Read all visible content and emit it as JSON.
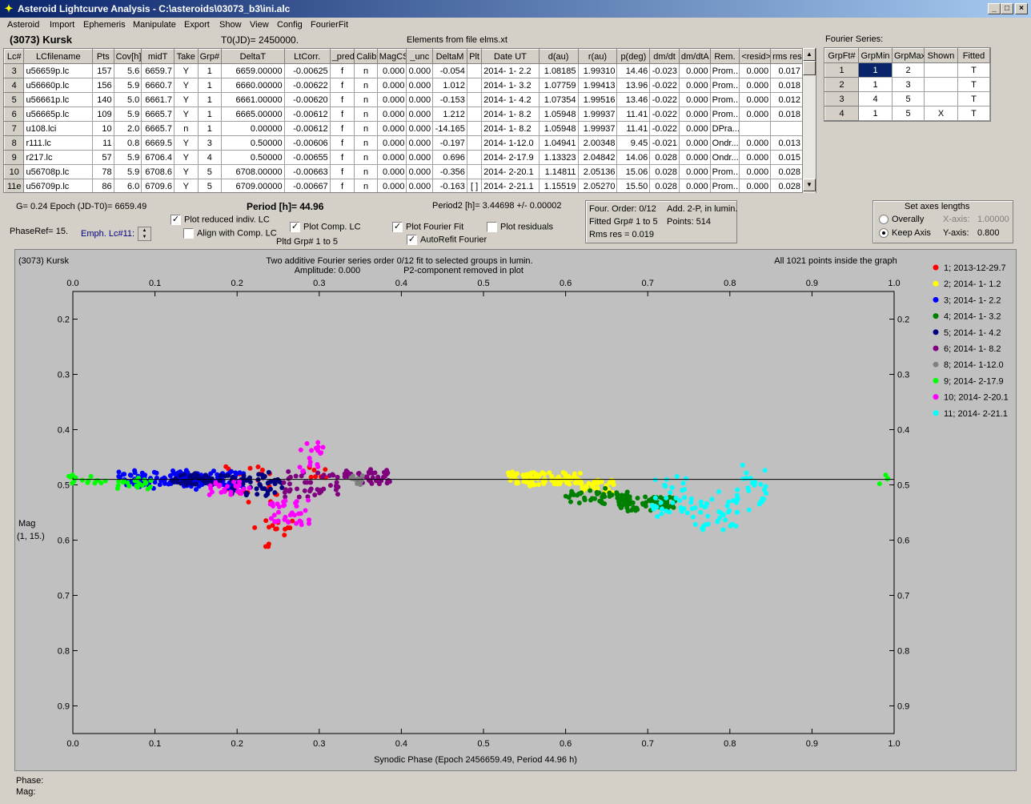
{
  "window": {
    "title": "Asteroid Lightcurve Analysis - C:\\asteroids\\03073_b3\\ini.alc",
    "icon_glyph": "✦",
    "btn_min": "_",
    "btn_max": "□",
    "btn_close": "×"
  },
  "menu": [
    "Asteroid",
    "Import",
    "Ephemeris",
    "Manipulate",
    "Export",
    "Show",
    "View",
    "Config",
    "FourierFit"
  ],
  "header": {
    "asteroid": "(3073) Kursk",
    "t0": "T0(JD)= 2450000.",
    "elements": "Elements from file elms.xt",
    "fourier_label": "Fourier Series:"
  },
  "lc_table": {
    "columns": [
      "Lc#",
      "LCfilename",
      "Pts",
      "Cov[h]",
      "midT",
      "Take",
      "Grp#",
      "DeltaT",
      "LtCorr.",
      "_pred.",
      "Calib.",
      "MagCS",
      "_unc",
      "DeltaM",
      "Plt",
      "Date UT",
      "d(au)",
      "r(au)",
      "p(deg)",
      "dm/dt",
      "dm/dtA",
      "Rem.",
      "<resid>",
      "rms res"
    ],
    "rows": [
      [
        "3",
        "u56659p.lc",
        "157",
        "5.6",
        "6659.7",
        "Y",
        "1",
        "6659.00000",
        "-0.00625",
        "f",
        "n",
        "0.000",
        "0.000",
        "-0.054",
        "",
        "2014- 1- 2.2",
        "1.08185",
        "1.99310",
        "14.46",
        "-0.023",
        "0.000",
        "Prom...",
        "0.000",
        "0.017"
      ],
      [
        "4",
        "u56660p.lc",
        "156",
        "5.9",
        "6660.7",
        "Y",
        "1",
        "6660.00000",
        "-0.00622",
        "f",
        "n",
        "0.000",
        "0.000",
        "1.012",
        "",
        "2014- 1- 3.2",
        "1.07759",
        "1.99413",
        "13.96",
        "-0.022",
        "0.000",
        "Prom...",
        "0.000",
        "0.018"
      ],
      [
        "5",
        "u56661p.lc",
        "140",
        "5.0",
        "6661.7",
        "Y",
        "1",
        "6661.00000",
        "-0.00620",
        "f",
        "n",
        "0.000",
        "0.000",
        "-0.153",
        "",
        "2014- 1- 4.2",
        "1.07354",
        "1.99516",
        "13.46",
        "-0.022",
        "0.000",
        "Prom...",
        "0.000",
        "0.012"
      ],
      [
        "6",
        "u56665p.lc",
        "109",
        "5.9",
        "6665.7",
        "Y",
        "1",
        "6665.00000",
        "-0.00612",
        "f",
        "n",
        "0.000",
        "0.000",
        "1.212",
        "",
        "2014- 1- 8.2",
        "1.05948",
        "1.99937",
        "11.41",
        "-0.022",
        "0.000",
        "Prom...",
        "0.000",
        "0.018"
      ],
      [
        "7",
        "u108.lci",
        "10",
        "2.0",
        "6665.7",
        "n",
        "1",
        "0.00000",
        "-0.00612",
        "f",
        "n",
        "0.000",
        "0.000",
        "-14.165",
        "",
        "2014- 1- 8.2",
        "1.05948",
        "1.99937",
        "11.41",
        "-0.022",
        "0.000",
        "DPra...",
        "",
        ""
      ],
      [
        "8",
        "r111.lc",
        "11",
        "0.8",
        "6669.5",
        "Y",
        "3",
        "0.50000",
        "-0.00606",
        "f",
        "n",
        "0.000",
        "0.000",
        "-0.197",
        "",
        "2014- 1-12.0",
        "1.04941",
        "2.00348",
        "9.45",
        "-0.021",
        "0.000",
        "Ondr...",
        "0.000",
        "0.013"
      ],
      [
        "9",
        "r217.lc",
        "57",
        "5.9",
        "6706.4",
        "Y",
        "4",
        "0.50000",
        "-0.00655",
        "f",
        "n",
        "0.000",
        "0.000",
        "0.696",
        "",
        "2014- 2-17.9",
        "1.13323",
        "2.04842",
        "14.06",
        "0.028",
        "0.000",
        "Ondr...",
        "0.000",
        "0.015"
      ],
      [
        "10",
        "u56708p.lc",
        "78",
        "5.9",
        "6708.6",
        "Y",
        "5",
        "6708.00000",
        "-0.00663",
        "f",
        "n",
        "0.000",
        "0.000",
        "-0.356",
        "",
        "2014- 2-20.1",
        "1.14811",
        "2.05136",
        "15.06",
        "0.028",
        "0.000",
        "Prom...",
        "0.000",
        "0.028"
      ],
      [
        "11e",
        "u56709p.lc",
        "86",
        "6.0",
        "6709.6",
        "Y",
        "5",
        "6709.00000",
        "-0.00667",
        "f",
        "n",
        "0.000",
        "0.000",
        "-0.163",
        "[ ]",
        "2014- 2-21.1",
        "1.15519",
        "2.05270",
        "15.50",
        "0.028",
        "0.000",
        "Prom...",
        "0.000",
        "0.028"
      ]
    ]
  },
  "fourier_table": {
    "columns": [
      "GrpFt#",
      "GrpMin",
      "GrpMax",
      "Shown",
      "Fitted"
    ],
    "rows": [
      [
        "1",
        "1",
        "2",
        "",
        "T"
      ],
      [
        "2",
        "1",
        "3",
        "",
        "T"
      ],
      [
        "3",
        "4",
        "5",
        "",
        "T"
      ],
      [
        "4",
        "1",
        "5",
        "X",
        "T"
      ]
    ]
  },
  "controls": {
    "g_epoch": "G= 0.24   Epoch (JD-T0)= 6659.49",
    "phaseref": "PhaseRef= 15.",
    "emph": "Emph. Lc#11:",
    "plot_reduced": "Plot reduced indiv. LC",
    "align_comp": "Align with Comp. LC",
    "plot_comp": "Plot Comp. LC",
    "plotted_grp": "Pltd Grp#  1   to   5",
    "period": "Period [h]= 44.96",
    "plot_fourier": "Plot Fourier Fit",
    "autorefit": "AutoRefit Fourier",
    "plot_residuals": "Plot residuals",
    "period2": "Period2 [h]= 3.44698 +/- 0.00002",
    "four_order": "Four. Order:  0/12",
    "add2p": "Add. 2-P, in lumin.",
    "fitted_grp": "Fitted Grp# 1 to 5",
    "points": "Points: 514",
    "rms_res": "Rms res    = 0.019",
    "axes_title": "Set axes lengths",
    "overally": "Overally",
    "keep_axis": "Keep Axis",
    "xaxis_lbl": "X-axis:",
    "xaxis_val": "1.00000",
    "yaxis_lbl": "Y-axis:",
    "yaxis_val": "0.800"
  },
  "status": {
    "phase": "Phase:",
    "mag": "Mag:"
  },
  "chart_data": {
    "type": "scatter",
    "corner_label": "(3073) Kursk",
    "title": "Two additive Fourier series order 0/12 fit to selected groups in lumin.",
    "subtitle_left": "Amplitude: 0.000",
    "subtitle_right": "P2-component removed in plot",
    "info_right": "All 1021 points inside the graph",
    "xlabel": "Synodic Phase (Epoch 2456659.49, Period 44.96 h)",
    "ylabel": "Mag",
    "ylabel2": "(1, 15.)",
    "xlim": [
      0.0,
      1.0
    ],
    "ylim": [
      0.15,
      0.95
    ],
    "y_inverted": true,
    "xticks": [
      "0.0",
      "0.1",
      "0.2",
      "0.3",
      "0.4",
      "0.5",
      "0.6",
      "0.7",
      "0.8",
      "0.9",
      "1.0"
    ],
    "yticks": [
      "0.2",
      "0.3",
      "0.4",
      "0.5",
      "0.6",
      "0.7",
      "0.8",
      "0.9"
    ],
    "fit_line_y": 0.49,
    "grid": false,
    "legend_position": "right",
    "series": [
      {
        "name": "1; 2013-12-29.7",
        "color": "#ff0000",
        "clusters": [
          [
            0.205,
            0.475,
            0.035,
            0.015,
            10
          ],
          [
            0.22,
            0.52,
            0.03,
            0.04,
            12
          ],
          [
            0.24,
            0.575,
            0.03,
            0.02,
            12
          ],
          [
            0.3,
            0.475,
            0.012,
            0.02,
            8
          ],
          [
            0.235,
            0.61,
            0.01,
            0.005,
            3
          ]
        ]
      },
      {
        "name": "2; 2014- 1- 1.2",
        "color": "#ffff00",
        "clusters": [
          [
            0.575,
            0.49,
            0.045,
            0.015,
            95
          ],
          [
            0.64,
            0.5,
            0.02,
            0.015,
            25
          ]
        ]
      },
      {
        "name": "3; 2014- 1- 2.2",
        "color": "#0000ff",
        "clusters": [
          [
            0.1,
            0.49,
            0.045,
            0.017,
            80
          ],
          [
            0.17,
            0.49,
            0.04,
            0.02,
            80
          ]
        ]
      },
      {
        "name": "4; 2014- 1- 3.2",
        "color": "#008000",
        "clusters": [
          [
            0.64,
            0.52,
            0.04,
            0.017,
            50
          ],
          [
            0.7,
            0.535,
            0.035,
            0.015,
            60
          ]
        ]
      },
      {
        "name": "5; 2014- 1- 4.2",
        "color": "#000080",
        "clusters": [
          [
            0.15,
            0.49,
            0.03,
            0.012,
            50
          ],
          [
            0.22,
            0.5,
            0.035,
            0.025,
            55
          ]
        ]
      },
      {
        "name": "6; 2014- 1- 8.2",
        "color": "#800080",
        "clusters": [
          [
            0.29,
            0.5,
            0.035,
            0.025,
            45
          ],
          [
            0.36,
            0.485,
            0.03,
            0.015,
            45
          ]
        ]
      },
      {
        "name": "8; 2014- 1-12.0",
        "color": "#808080",
        "clusters": [
          [
            0.345,
            0.49,
            0.008,
            0.014,
            11
          ]
        ]
      },
      {
        "name": "9; 2014- 2-17.9",
        "color": "#00ff00",
        "clusters": [
          [
            0.02,
            0.49,
            0.025,
            0.01,
            15
          ],
          [
            0.075,
            0.5,
            0.025,
            0.015,
            20
          ],
          [
            0.985,
            0.49,
            0.01,
            0.015,
            4
          ]
        ]
      },
      {
        "name": "10; 2014- 2-20.1",
        "color": "#ff00ff",
        "clusters": [
          [
            0.19,
            0.505,
            0.025,
            0.015,
            25
          ],
          [
            0.265,
            0.55,
            0.025,
            0.025,
            35
          ],
          [
            0.29,
            0.45,
            0.015,
            0.035,
            18
          ]
        ]
      },
      {
        "name": "11; 2014- 2-21.1",
        "color": "#00ffff",
        "clusters": [
          [
            0.73,
            0.52,
            0.025,
            0.04,
            35
          ],
          [
            0.78,
            0.55,
            0.03,
            0.04,
            40
          ],
          [
            0.825,
            0.5,
            0.02,
            0.05,
            25
          ]
        ]
      }
    ]
  }
}
